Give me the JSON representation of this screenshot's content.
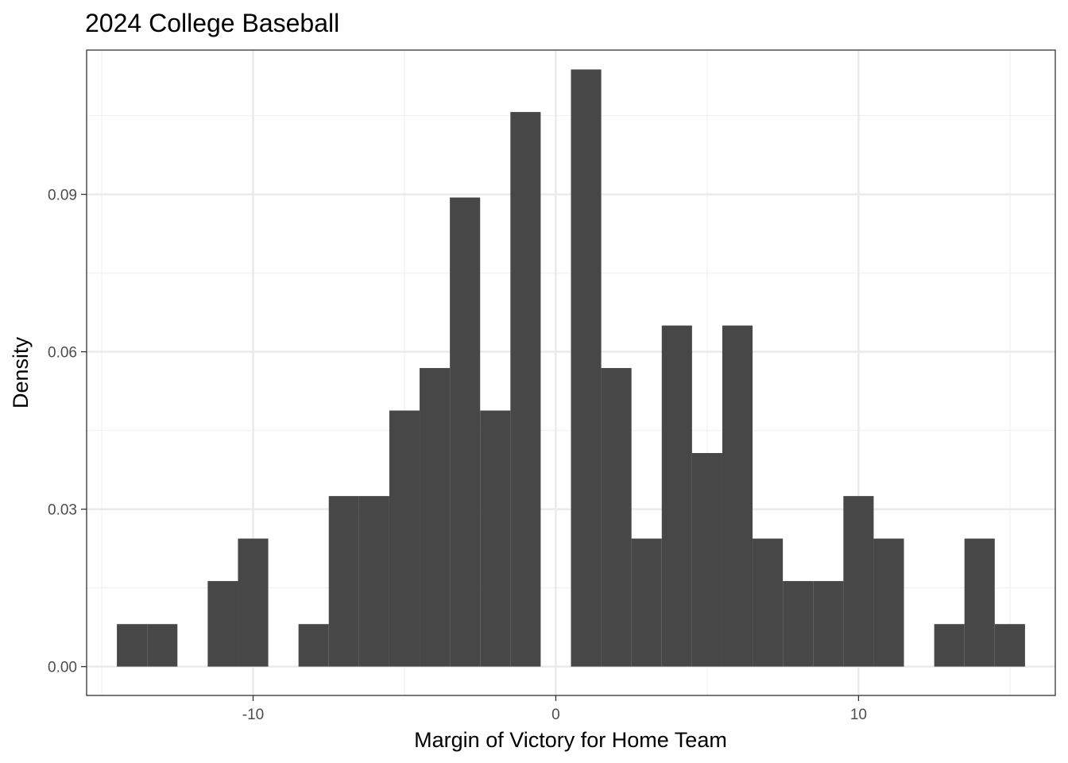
{
  "chart_data": {
    "type": "bar",
    "subtype": "histogram",
    "title": "2024 College Baseball",
    "xlabel": "Margin of Victory for Home Team",
    "ylabel": "Density",
    "xlim": [
      -15.5,
      16.5
    ],
    "ylim": [
      -0.0055,
      0.1175
    ],
    "bin_width": 1,
    "x_ticks": [
      -10,
      0,
      10
    ],
    "x_tick_labels": [
      "-10",
      "0",
      "10"
    ],
    "x_minor_gridlines": [
      -15,
      -5,
      5,
      15
    ],
    "y_ticks": [
      0,
      0.03,
      0.06,
      0.09
    ],
    "y_tick_labels": [
      "0.00",
      "0.03",
      "0.06",
      "0.09"
    ],
    "y_minor_gridlines": [
      0.015,
      0.045,
      0.075,
      0.105
    ],
    "grid": true,
    "bar_color": "#474747",
    "grid_major_color": "#ebebeb",
    "grid_minor_color": "#f2f2f2",
    "bins": [
      {
        "x": -14,
        "value": 0.0081
      },
      {
        "x": -13,
        "value": 0.0081
      },
      {
        "x": -12,
        "value": 0
      },
      {
        "x": -11,
        "value": 0.0163
      },
      {
        "x": -10,
        "value": 0.0244
      },
      {
        "x": -9,
        "value": 0
      },
      {
        "x": -8,
        "value": 0.0081
      },
      {
        "x": -7,
        "value": 0.0325
      },
      {
        "x": -6,
        "value": 0.0325
      },
      {
        "x": -5,
        "value": 0.0488
      },
      {
        "x": -4,
        "value": 0.0569
      },
      {
        "x": -3,
        "value": 0.0894
      },
      {
        "x": -2,
        "value": 0.0488
      },
      {
        "x": -1,
        "value": 0.1057
      },
      {
        "x": 0,
        "value": 0
      },
      {
        "x": 1,
        "value": 0.1138
      },
      {
        "x": 2,
        "value": 0.0569
      },
      {
        "x": 3,
        "value": 0.0244
      },
      {
        "x": 4,
        "value": 0.065
      },
      {
        "x": 5,
        "value": 0.0407
      },
      {
        "x": 6,
        "value": 0.065
      },
      {
        "x": 7,
        "value": 0.0244
      },
      {
        "x": 8,
        "value": 0.0163
      },
      {
        "x": 9,
        "value": 0.0163
      },
      {
        "x": 10,
        "value": 0.0325
      },
      {
        "x": 11,
        "value": 0.0244
      },
      {
        "x": 12,
        "value": 0
      },
      {
        "x": 13,
        "value": 0.0081
      },
      {
        "x": 14,
        "value": 0.0244
      },
      {
        "x": 15,
        "value": 0.0081
      }
    ]
  }
}
